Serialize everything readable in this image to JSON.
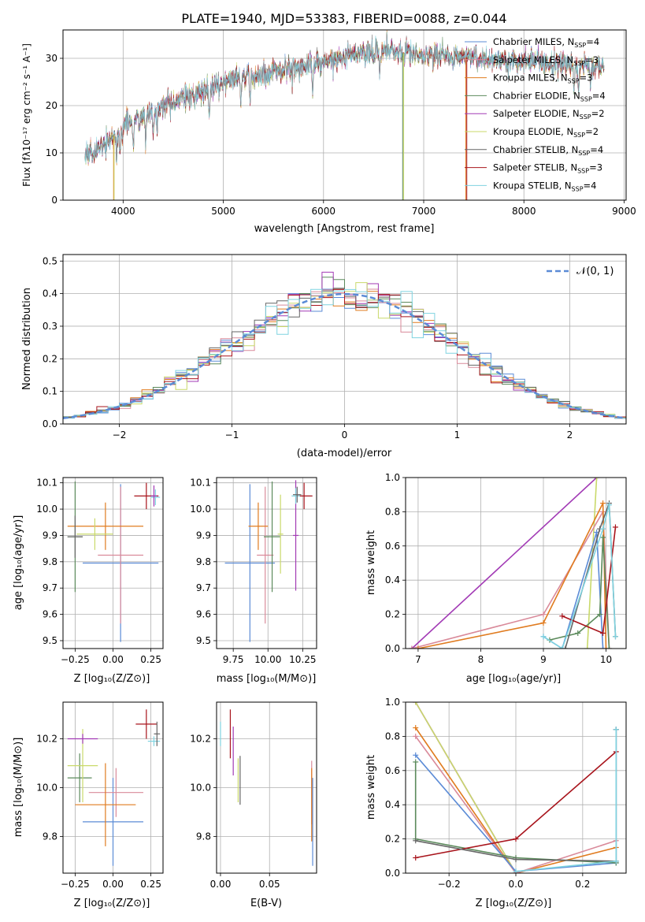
{
  "figure_title": "PLATE=1940, MJD=53383, FIBERID=0088, z=0.044",
  "model_colors": [
    "#5b8bd6",
    "#e07b1f",
    "#5b8a5b",
    "#a23ab5",
    "#c9d96a",
    "#666666",
    "#a8141c",
    "#7fd3e0",
    "#d98a9a"
  ],
  "spectrum": {
    "xlabel": "wavelength [Angstrom, rest frame]",
    "ylabel": "Flux [fλ10⁻¹⁷ erg cm⁻² s⁻¹ A⁻¹]",
    "xlim": [
      3400,
      9020
    ],
    "ylim": [
      0,
      36
    ],
    "xticks": [
      "4000",
      "5000",
      "6000",
      "7000",
      "8000",
      "9000"
    ],
    "yticks": [
      "0",
      "10",
      "20",
      "30"
    ],
    "wavelength_range": [
      3620,
      8800
    ],
    "legend": [
      {
        "label": "Chabrier MILES, N",
        "sub": "SSP",
        "tail": "=4",
        "color": "#5b8bd6"
      },
      {
        "label": "Salpeter MILES, N",
        "sub": "SSP",
        "tail": "=3",
        "color": "#d98a9a"
      },
      {
        "label": "Kroupa MILES, N",
        "sub": "SSP",
        "tail": "=3",
        "color": "#e07b1f"
      },
      {
        "label": "Chabrier ELODIE, N",
        "sub": "SSP",
        "tail": "=4",
        "color": "#5b8a5b"
      },
      {
        "label": "Salpeter ELODIE, N",
        "sub": "SSP",
        "tail": "=2",
        "color": "#a23ab5"
      },
      {
        "label": "Kroupa ELODIE, N",
        "sub": "SSP",
        "tail": "=2",
        "color": "#c9d96a"
      },
      {
        "label": "Chabrier STELIB, N",
        "sub": "SSP",
        "tail": "=4",
        "color": "#666666"
      },
      {
        "label": "Salpeter STELIB, N",
        "sub": "SSP",
        "tail": "=3",
        "color": "#a8141c"
      },
      {
        "label": "Kroupa STELIB, N",
        "sub": "SSP",
        "tail": "=4",
        "color": "#7fd3e0"
      }
    ]
  },
  "residuals": {
    "xlabel": "(data-model)/error",
    "ylabel": "Normed distribution",
    "xlim": [
      -2.5,
      2.5
    ],
    "ylim": [
      0,
      0.52
    ],
    "xticks": [
      "−2",
      "−1",
      "0",
      "1",
      "2"
    ],
    "yticks": [
      "0.0",
      "0.1",
      "0.2",
      "0.3",
      "0.4",
      "0.5"
    ],
    "legend": "𝒩(0, 1)",
    "gaussian_color": "#5b8bd6"
  },
  "panel_z_age": {
    "xlabel": "Z [log₁₀(Z/Z⊙)]",
    "ylabel": "age  [log₁₀(age/yr)]",
    "xlim": [
      -0.33,
      0.33
    ],
    "ylim": [
      9.47,
      10.12
    ],
    "xticks": [
      "−0.25",
      "0.00",
      "0.25"
    ],
    "yticks": [
      "9.5",
      "9.6",
      "9.7",
      "9.8",
      "9.9",
      "10.0",
      "10.1"
    ],
    "points": [
      {
        "x": 0.05,
        "y": 9.795,
        "xerr": 0.25,
        "yerr": 0.3,
        "color": "#5b8bd6"
      },
      {
        "x": 0.05,
        "y": 9.825,
        "xerr": 0.15,
        "yerr": 0.26,
        "color": "#d98a9a"
      },
      {
        "x": -0.05,
        "y": 9.935,
        "xerr": 0.25,
        "yerr": 0.09,
        "color": "#e07b1f"
      },
      {
        "x": -0.25,
        "y": 9.895,
        "xerr": 0.05,
        "yerr": 0.21,
        "color": "#5b8a5b"
      },
      {
        "x": -0.12,
        "y": 9.905,
        "xerr": 0.12,
        "yerr": 0.06,
        "color": "#c9d96a"
      },
      {
        "x": -0.25,
        "y": 9.895,
        "xerr": 0.05,
        "yerr": 0.08,
        "color": "#666666"
      },
      {
        "x": 0.22,
        "y": 10.05,
        "xerr": 0.08,
        "yerr": 0.05,
        "color": "#a8141c"
      },
      {
        "x": 0.28,
        "y": 10.045,
        "xerr": 0.03,
        "yerr": 0.03,
        "color": "#7fd3e0"
      },
      {
        "x": 0.27,
        "y": 10.05,
        "xerr": 0.02,
        "yerr": 0.04,
        "color": "#a23ab5"
      }
    ]
  },
  "panel_mass_age": {
    "xlabel": "mass [log₁₀(M/M⊙)]",
    "ylabel": "",
    "xlim": [
      9.63,
      10.35
    ],
    "ylim": [
      9.47,
      10.12
    ],
    "xticks": [
      "9.75",
      "10.00",
      "10.25"
    ],
    "yticks": [
      "9.5",
      "9.6",
      "9.7",
      "9.8",
      "9.9",
      "10.0",
      "10.1"
    ],
    "points": [
      {
        "x": 9.87,
        "y": 9.795,
        "xerr": 0.18,
        "yerr": 0.3,
        "color": "#5b8bd6"
      },
      {
        "x": 9.98,
        "y": 9.825,
        "xerr": 0.06,
        "yerr": 0.26,
        "color": "#d98a9a"
      },
      {
        "x": 9.93,
        "y": 9.935,
        "xerr": 0.07,
        "yerr": 0.09,
        "color": "#e07b1f"
      },
      {
        "x": 10.03,
        "y": 9.895,
        "xerr": 0.06,
        "yerr": 0.21,
        "color": "#5b8a5b"
      },
      {
        "x": 10.09,
        "y": 9.905,
        "xerr": 0.02,
        "yerr": 0.15,
        "color": "#c9d96a"
      },
      {
        "x": 10.2,
        "y": 9.9,
        "xerr": 0.02,
        "yerr": 0.21,
        "color": "#a23ab5"
      },
      {
        "x": 10.26,
        "y": 10.05,
        "xerr": 0.06,
        "yerr": 0.05,
        "color": "#a8141c"
      },
      {
        "x": 10.2,
        "y": 10.05,
        "xerr": 0.03,
        "yerr": 0.03,
        "color": "#7fd3e0"
      },
      {
        "x": 10.21,
        "y": 10.055,
        "xerr": 0.03,
        "yerr": 0.03,
        "color": "#666666"
      }
    ]
  },
  "panel_z_mass": {
    "xlabel": "Z [log₁₀(Z/Z⊙)]",
    "ylabel": "mass [log₁₀(M/M⊙)]",
    "xlim": [
      -0.33,
      0.33
    ],
    "ylim": [
      9.65,
      10.35
    ],
    "xticks": [
      "−0.25",
      "0.00",
      "0.25"
    ],
    "yticks": [
      "9.8",
      "10.0",
      "10.2"
    ],
    "points": [
      {
        "x": 0.0,
        "y": 9.86,
        "xerr": 0.2,
        "yerr": 0.18,
        "color": "#5b8bd6"
      },
      {
        "x": 0.02,
        "y": 9.98,
        "xerr": 0.18,
        "yerr": 0.1,
        "color": "#d98a9a"
      },
      {
        "x": -0.05,
        "y": 9.93,
        "xerr": 0.2,
        "yerr": 0.17,
        "color": "#e07b1f"
      },
      {
        "x": -0.22,
        "y": 10.04,
        "xerr": 0.08,
        "yerr": 0.1,
        "color": "#5b8a5b"
      },
      {
        "x": -0.2,
        "y": 10.09,
        "xerr": 0.1,
        "yerr": 0.15,
        "color": "#c9d96a"
      },
      {
        "x": -0.2,
        "y": 10.2,
        "xerr": 0.1,
        "yerr": 0.02,
        "color": "#a23ab5"
      },
      {
        "x": 0.22,
        "y": 10.26,
        "xerr": 0.07,
        "yerr": 0.06,
        "color": "#a8141c"
      },
      {
        "x": 0.27,
        "y": 10.19,
        "xerr": 0.04,
        "yerr": 0.02,
        "color": "#7fd3e0"
      },
      {
        "x": 0.29,
        "y": 10.22,
        "xerr": 0.02,
        "yerr": 0.05,
        "color": "#666666"
      }
    ]
  },
  "panel_ebv_mass": {
    "xlabel": "E(B-V)",
    "ylabel": "",
    "xlim": [
      -0.004,
      0.098
    ],
    "ylim": [
      9.65,
      10.35
    ],
    "xticks": [
      "0.00",
      "0.05"
    ],
    "yticks": [
      "9.8",
      "10.0",
      "10.2"
    ],
    "points": [
      {
        "x": 0.0,
        "y": 10.22,
        "xerr": 0,
        "yerr": 0.05,
        "color": "#7fd3e0"
      },
      {
        "x": 0.01,
        "y": 10.22,
        "xerr": 0,
        "yerr": 0.1,
        "color": "#a8141c"
      },
      {
        "x": 0.013,
        "y": 10.15,
        "xerr": 0,
        "yerr": 0.1,
        "color": "#a23ab5"
      },
      {
        "x": 0.018,
        "y": 10.03,
        "xerr": 0,
        "yerr": 0.09,
        "color": "#c9d96a"
      },
      {
        "x": 0.02,
        "y": 10.03,
        "xerr": 0,
        "yerr": 0.1,
        "color": "#666666"
      },
      {
        "x": 0.093,
        "y": 9.98,
        "xerr": 0,
        "yerr": 0.13,
        "color": "#d98a9a"
      },
      {
        "x": 0.093,
        "y": 9.93,
        "xerr": 0,
        "yerr": 0.15,
        "color": "#e07b1f"
      },
      {
        "x": 0.094,
        "y": 9.86,
        "xerr": 0,
        "yerr": 0.18,
        "color": "#5b8bd6"
      }
    ]
  },
  "panel_age_weight": {
    "xlabel": "age  [log₁₀(age/yr)]",
    "ylabel": "mass weight",
    "xlim": [
      6.8,
      10.32
    ],
    "ylim": [
      0,
      1.0
    ],
    "xticks": [
      "7",
      "8",
      "9",
      "10"
    ],
    "yticks": [
      "0.0",
      "0.2",
      "0.4",
      "0.6",
      "0.8",
      "1.0"
    ],
    "series": [
      {
        "color": "#a23ab5",
        "x": [
          6.9,
          9.85
        ],
        "y": [
          0.0,
          1.0
        ]
      },
      {
        "color": "#c9d96a",
        "x": [
          9.7,
          9.85
        ],
        "y": [
          0.0,
          1.0
        ]
      },
      {
        "color": "#d98a9a",
        "x": [
          6.9,
          9.0,
          9.95,
          10.05
        ],
        "y": [
          0.0,
          0.2,
          0.8,
          0.0
        ]
      },
      {
        "color": "#e07b1f",
        "x": [
          7.0,
          9.0,
          9.95,
          10.0
        ],
        "y": [
          0.0,
          0.15,
          0.85,
          0.0
        ]
      },
      {
        "color": "#5b8bd6",
        "x": [
          9.0,
          9.3,
          9.85,
          9.95
        ],
        "y": [
          0.07,
          0.0,
          0.68,
          0.0
        ]
      },
      {
        "color": "#5b8a5b",
        "x": [
          9.1,
          9.55,
          9.9,
          9.95,
          10.05
        ],
        "y": [
          0.05,
          0.09,
          0.2,
          0.65,
          0.0
        ]
      },
      {
        "color": "#666666",
        "x": [
          9.35,
          9.9,
          10.05,
          10.15
        ],
        "y": [
          0.0,
          0.7,
          0.85,
          0.07
        ]
      },
      {
        "color": "#a8141c",
        "x": [
          9.3,
          9.95,
          10.15
        ],
        "y": [
          0.19,
          0.09,
          0.71
        ]
      },
      {
        "color": "#7fd3e0",
        "x": [
          9.0,
          9.3,
          9.95,
          10.05,
          10.15
        ],
        "y": [
          0.07,
          0.0,
          0.7,
          0.84,
          0.07
        ]
      }
    ]
  },
  "panel_z_weight": {
    "xlabel": "Z [log₁₀(Z/Z⊙)]",
    "ylabel": "mass weight",
    "xlim": [
      -0.33,
      0.33
    ],
    "ylim": [
      0,
      1.0
    ],
    "xticks": [
      "−0.2",
      "0.0",
      "0.2"
    ],
    "yticks": [
      "0.0",
      "0.2",
      "0.4",
      "0.6",
      "0.8",
      "1.0"
    ],
    "series": [
      {
        "color": "#a23ab5",
        "x": [
          -0.3,
          0.0
        ],
        "y": [
          1.0,
          0.0
        ]
      },
      {
        "color": "#c9d96a",
        "x": [
          -0.3,
          0.0
        ],
        "y": [
          1.0,
          0.0
        ]
      },
      {
        "color": "#e07b1f",
        "x": [
          -0.3,
          0.0,
          0.3
        ],
        "y": [
          0.85,
          0.0,
          0.15
        ]
      },
      {
        "color": "#d98a9a",
        "x": [
          -0.3,
          0.0,
          0.3
        ],
        "y": [
          0.8,
          0.0,
          0.19
        ]
      },
      {
        "color": "#5b8bd6",
        "x": [
          -0.3,
          0.0,
          0.3,
          0.3
        ],
        "y": [
          0.69,
          0.01,
          0.06,
          0.84
        ]
      },
      {
        "color": "#5b8a5b",
        "x": [
          -0.3,
          -0.3,
          0.0,
          0.3
        ],
        "y": [
          0.65,
          0.2,
          0.09,
          0.06
        ]
      },
      {
        "color": "#a8141c",
        "x": [
          -0.3,
          0.0,
          0.3
        ],
        "y": [
          0.09,
          0.2,
          0.71
        ]
      },
      {
        "color": "#666666",
        "x": [
          -0.3,
          0.0,
          0.3,
          0.3
        ],
        "y": [
          0.19,
          0.08,
          0.07,
          0.84
        ]
      },
      {
        "color": "#7fd3e0",
        "x": [
          0.0,
          0.3,
          0.3
        ],
        "y": [
          0.01,
          0.07,
          0.84
        ]
      }
    ]
  }
}
